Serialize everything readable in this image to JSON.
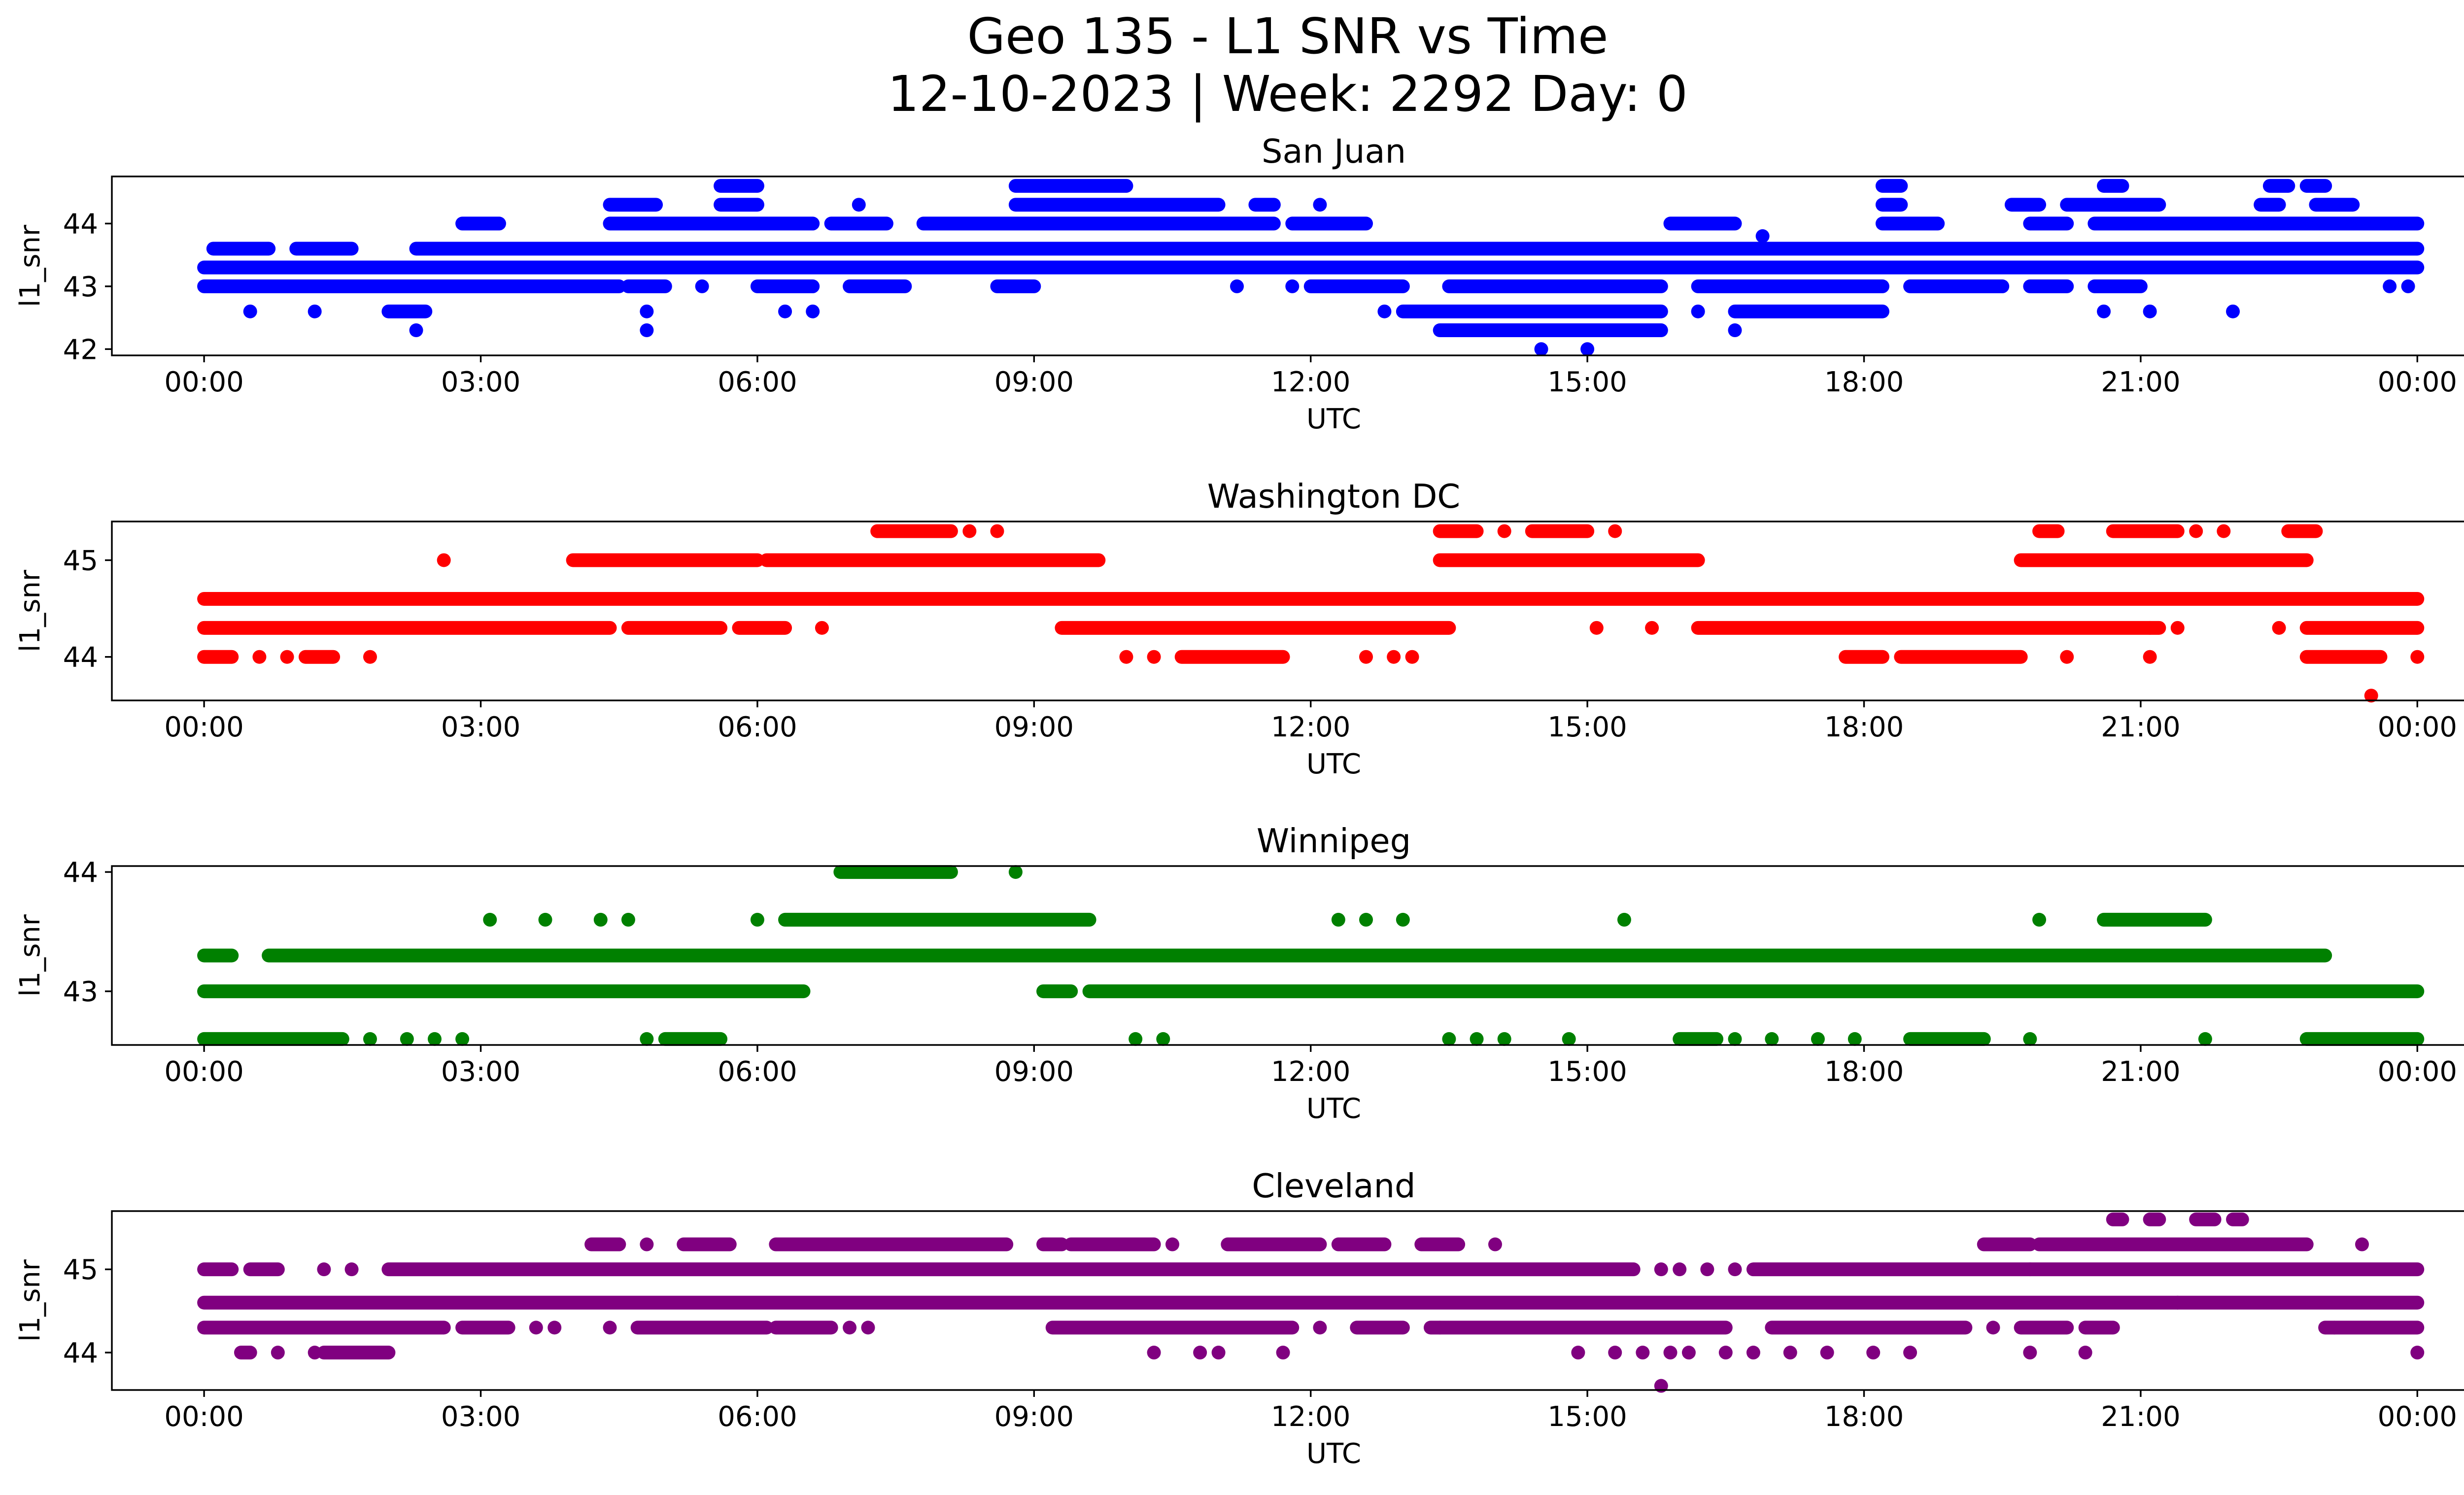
{
  "figure": {
    "title_line1": "Geo 135 - L1 SNR vs Time",
    "title_line2": "12-10-2023 | Week: 2292 Day: 0"
  },
  "chart_data": [
    {
      "type": "scatter",
      "title": "San Juan",
      "xlabel": "UTC",
      "ylabel": "l1_snr",
      "color": "#0000ff",
      "x_unit": "hours UTC",
      "xlim": [
        -1,
        25.5
      ],
      "ylim": [
        41.9,
        44.75
      ],
      "xticks": [
        "00:00",
        "03:00",
        "06:00",
        "09:00",
        "12:00",
        "15:00",
        "18:00",
        "21:00",
        "00:00"
      ],
      "yticks": [
        42,
        43,
        44
      ],
      "grid": false,
      "levels": [
        {
          "y": 43.3,
          "segments": [
            [
              0,
              24
            ]
          ]
        },
        {
          "y": 43.0,
          "segments": [
            [
              0,
              4.5
            ],
            [
              4.6,
              5.0
            ],
            [
              6.0,
              6.6
            ],
            [
              7.0,
              7.6
            ],
            [
              8.6,
              9.0
            ],
            [
              12.0,
              13.0
            ],
            [
              13.5,
              15.8
            ],
            [
              16.2,
              18.2
            ],
            [
              18.5,
              19.5
            ],
            [
              19.8,
              20.2
            ],
            [
              20.5,
              21.0
            ]
          ]
        },
        {
          "y": 43.6,
          "segments": [
            [
              0.1,
              0.7
            ],
            [
              1.0,
              1.6
            ],
            [
              2.3,
              24
            ]
          ]
        },
        {
          "y": 42.6,
          "segments": [
            [
              2.0,
              2.4
            ],
            [
              13.0,
              15.8
            ],
            [
              16.6,
              18.2
            ]
          ]
        },
        {
          "y": 44.0,
          "segments": [
            [
              2.8,
              3.2
            ],
            [
              4.4,
              6.6
            ],
            [
              6.8,
              7.4
            ],
            [
              7.8,
              8.8
            ],
            [
              8.8,
              11.6
            ],
            [
              11.8,
              12.6
            ],
            [
              15.9,
              16.6
            ],
            [
              18.2,
              18.8
            ],
            [
              19.8,
              20.2
            ],
            [
              20.5,
              24
            ]
          ]
        },
        {
          "y": 44.3,
          "segments": [
            [
              4.4,
              4.9
            ],
            [
              5.6,
              6.0
            ],
            [
              8.8,
              11.0
            ],
            [
              11.4,
              11.6
            ],
            [
              18.2,
              18.4
            ],
            [
              19.6,
              19.9
            ],
            [
              20.2,
              21.2
            ],
            [
              22.3,
              22.5
            ],
            [
              22.9,
              23.3
            ]
          ]
        },
        {
          "y": 44.6,
          "segments": [
            [
              5.6,
              6.0
            ],
            [
              8.8,
              10.0
            ],
            [
              18.2,
              18.4
            ],
            [
              20.6,
              20.8
            ],
            [
              22.4,
              22.6
            ],
            [
              22.8,
              23.0
            ]
          ]
        },
        {
          "y": 42.3,
          "segments": [
            [
              13.4,
              15.8
            ]
          ]
        }
      ],
      "points": [
        {
          "x": 0.5,
          "y": 42.6
        },
        {
          "x": 1.2,
          "y": 42.6
        },
        {
          "x": 2.3,
          "y": 42.3
        },
        {
          "x": 4.8,
          "y": 42.6
        },
        {
          "x": 4.8,
          "y": 42.3
        },
        {
          "x": 5.4,
          "y": 43.0
        },
        {
          "x": 6.3,
          "y": 42.6
        },
        {
          "x": 6.6,
          "y": 42.6
        },
        {
          "x": 12.8,
          "y": 42.6
        },
        {
          "x": 14.5,
          "y": 42.0
        },
        {
          "x": 15.0,
          "y": 42.0
        },
        {
          "x": 16.2,
          "y": 42.6
        },
        {
          "x": 16.6,
          "y": 42.3
        },
        {
          "x": 20.6,
          "y": 42.6
        },
        {
          "x": 22.0,
          "y": 42.6
        },
        {
          "x": 23.7,
          "y": 43.0
        },
        {
          "x": 23.9,
          "y": 43.0
        },
        {
          "x": 11.2,
          "y": 43.0
        },
        {
          "x": 11.8,
          "y": 43.0
        },
        {
          "x": 12.1,
          "y": 44.3
        },
        {
          "x": 7.1,
          "y": 44.3
        },
        {
          "x": 16.9,
          "y": 43.8
        },
        {
          "x": 17.5,
          "y": 43.6
        },
        {
          "x": 21.1,
          "y": 42.6
        }
      ]
    },
    {
      "type": "scatter",
      "title": "Washington DC",
      "xlabel": "UTC",
      "ylabel": "l1_snr",
      "color": "#ff0000",
      "x_unit": "hours UTC",
      "xlim": [
        -1,
        25.5
      ],
      "ylim": [
        43.55,
        45.4
      ],
      "xticks": [
        "00:00",
        "03:00",
        "06:00",
        "09:00",
        "12:00",
        "15:00",
        "18:00",
        "21:00",
        "00:00"
      ],
      "yticks": [
        44,
        45
      ],
      "grid": false,
      "levels": [
        {
          "y": 44.6,
          "segments": [
            [
              0,
              24
            ]
          ]
        },
        {
          "y": 44.3,
          "segments": [
            [
              0,
              4.4
            ],
            [
              4.6,
              5.6
            ],
            [
              5.8,
              6.3
            ],
            [
              9.3,
              13.5
            ],
            [
              16.2,
              21.2
            ],
            [
              22.8,
              24
            ]
          ]
        },
        {
          "y": 45.0,
          "segments": [
            [
              4.0,
              6.0
            ],
            [
              6.1,
              9.7
            ],
            [
              13.4,
              16.2
            ],
            [
              19.7,
              22.8
            ]
          ]
        },
        {
          "y": 44.0,
          "segments": [
            [
              0,
              0.3
            ],
            [
              1.1,
              1.4
            ],
            [
              10.6,
              11.7
            ],
            [
              17.8,
              18.2
            ],
            [
              18.4,
              19.7
            ],
            [
              22.8,
              23.6
            ]
          ]
        },
        {
          "y": 45.3,
          "segments": [
            [
              7.3,
              8.1
            ],
            [
              13.4,
              13.8
            ],
            [
              14.4,
              15.0
            ],
            [
              19.9,
              20.1
            ],
            [
              20.7,
              21.4
            ],
            [
              22.6,
              22.9
            ]
          ]
        }
      ],
      "points": [
        {
          "x": 2.6,
          "y": 45.0
        },
        {
          "x": 0.6,
          "y": 44.0
        },
        {
          "x": 0.9,
          "y": 44.0
        },
        {
          "x": 1.8,
          "y": 44.0
        },
        {
          "x": 6.7,
          "y": 44.3
        },
        {
          "x": 8.6,
          "y": 45.3
        },
        {
          "x": 8.3,
          "y": 45.3
        },
        {
          "x": 10.0,
          "y": 44.0
        },
        {
          "x": 10.3,
          "y": 44.0
        },
        {
          "x": 12.6,
          "y": 44.0
        },
        {
          "x": 12.9,
          "y": 44.0
        },
        {
          "x": 13.1,
          "y": 44.0
        },
        {
          "x": 15.1,
          "y": 44.3
        },
        {
          "x": 15.7,
          "y": 44.3
        },
        {
          "x": 15.3,
          "y": 45.3
        },
        {
          "x": 14.1,
          "y": 45.3
        },
        {
          "x": 18.6,
          "y": 44.6
        },
        {
          "x": 19.2,
          "y": 44.6
        },
        {
          "x": 20.2,
          "y": 44.0
        },
        {
          "x": 21.1,
          "y": 44.0
        },
        {
          "x": 21.1,
          "y": 44.3
        },
        {
          "x": 21.4,
          "y": 44.3
        },
        {
          "x": 21.6,
          "y": 45.3
        },
        {
          "x": 21.9,
          "y": 45.3
        },
        {
          "x": 22.5,
          "y": 44.3
        },
        {
          "x": 23.5,
          "y": 43.6
        },
        {
          "x": 24.0,
          "y": 44.0
        }
      ]
    },
    {
      "type": "scatter",
      "title": "Winnipeg",
      "xlabel": "UTC",
      "ylabel": "l1_snr",
      "color": "#008000",
      "x_unit": "hours UTC",
      "xlim": [
        -1,
        25.5
      ],
      "ylim": [
        42.55,
        44.05
      ],
      "xticks": [
        "00:00",
        "03:00",
        "06:00",
        "09:00",
        "12:00",
        "15:00",
        "18:00",
        "21:00",
        "00:00"
      ],
      "yticks": [
        43,
        44
      ],
      "grid": false,
      "levels": [
        {
          "y": 43.0,
          "segments": [
            [
              0,
              6.5
            ],
            [
              9.1,
              9.4
            ],
            [
              9.6,
              24
            ]
          ]
        },
        {
          "y": 43.3,
          "segments": [
            [
              0,
              0.3
            ],
            [
              0.7,
              23.0
            ]
          ]
        },
        {
          "y": 42.6,
          "segments": [
            [
              0,
              1.5
            ],
            [
              5.0,
              5.6
            ],
            [
              16.0,
              16.4
            ],
            [
              18.5,
              19.3
            ],
            [
              22.8,
              24
            ]
          ]
        },
        {
          "y": 43.6,
          "segments": [
            [
              6.3,
              9.6
            ],
            [
              20.6,
              21.7
            ]
          ]
        },
        {
          "y": 44.0,
          "segments": [
            [
              6.9,
              8.1
            ]
          ]
        }
      ],
      "points": [
        {
          "x": 1.8,
          "y": 42.6
        },
        {
          "x": 2.2,
          "y": 42.6
        },
        {
          "x": 2.5,
          "y": 42.6
        },
        {
          "x": 2.8,
          "y": 42.6
        },
        {
          "x": 3.1,
          "y": 43.6
        },
        {
          "x": 3.7,
          "y": 43.6
        },
        {
          "x": 4.3,
          "y": 43.6
        },
        {
          "x": 4.6,
          "y": 43.6
        },
        {
          "x": 4.8,
          "y": 42.6
        },
        {
          "x": 6.0,
          "y": 43.6
        },
        {
          "x": 8.8,
          "y": 44.0
        },
        {
          "x": 10.1,
          "y": 42.6
        },
        {
          "x": 10.4,
          "y": 42.6
        },
        {
          "x": 12.3,
          "y": 43.6
        },
        {
          "x": 12.6,
          "y": 43.6
        },
        {
          "x": 13.0,
          "y": 43.6
        },
        {
          "x": 13.5,
          "y": 42.6
        },
        {
          "x": 13.8,
          "y": 42.6
        },
        {
          "x": 14.1,
          "y": 42.6
        },
        {
          "x": 14.8,
          "y": 42.6
        },
        {
          "x": 15.4,
          "y": 43.6
        },
        {
          "x": 16.6,
          "y": 42.6
        },
        {
          "x": 17.0,
          "y": 42.6
        },
        {
          "x": 17.5,
          "y": 42.6
        },
        {
          "x": 17.9,
          "y": 42.6
        },
        {
          "x": 19.8,
          "y": 42.6
        },
        {
          "x": 19.9,
          "y": 43.6
        },
        {
          "x": 21.7,
          "y": 42.6
        }
      ]
    },
    {
      "type": "scatter",
      "title": "Cleveland",
      "xlabel": "UTC",
      "ylabel": "l1_snr",
      "color": "#800080",
      "x_unit": "hours UTC",
      "xlim": [
        -1,
        25.5
      ],
      "ylim": [
        43.55,
        45.7
      ],
      "xticks": [
        "00:00",
        "03:00",
        "06:00",
        "09:00",
        "12:00",
        "15:00",
        "18:00",
        "21:00",
        "00:00"
      ],
      "yticks": [
        44,
        45
      ],
      "grid": false,
      "levels": [
        {
          "y": 44.6,
          "segments": [
            [
              0,
              24
            ]
          ]
        },
        {
          "y": 44.3,
          "segments": [
            [
              0,
              2.6
            ],
            [
              2.8,
              3.3
            ],
            [
              4.7,
              6.1
            ],
            [
              6.2,
              6.8
            ],
            [
              9.2,
              11.8
            ],
            [
              12.5,
              13.0
            ],
            [
              13.3,
              16.5
            ],
            [
              17.0,
              19.1
            ],
            [
              19.7,
              20.2
            ],
            [
              20.4,
              20.7
            ],
            [
              23.0,
              24
            ]
          ]
        },
        {
          "y": 45.0,
          "segments": [
            [
              0,
              0.3
            ],
            [
              0.5,
              0.8
            ],
            [
              2.0,
              15.5
            ],
            [
              16.8,
              19.8
            ],
            [
              19.8,
              24
            ]
          ]
        },
        {
          "y": 44.0,
          "segments": [
            [
              0.4,
              0.5
            ],
            [
              1.3,
              2.0
            ]
          ]
        },
        {
          "y": 45.3,
          "segments": [
            [
              4.2,
              4.5
            ],
            [
              5.2,
              5.7
            ],
            [
              6.2,
              8.7
            ],
            [
              9.1,
              9.3
            ],
            [
              9.4,
              10.3
            ],
            [
              11.1,
              12.1
            ],
            [
              12.3,
              12.8
            ],
            [
              13.2,
              13.6
            ],
            [
              19.3,
              19.8
            ],
            [
              19.9,
              22.8
            ]
          ]
        },
        {
          "y": 45.6,
          "segments": [
            [
              20.7,
              20.8
            ],
            [
              21.1,
              21.2
            ],
            [
              21.6,
              21.8
            ],
            [
              22.0,
              22.1
            ]
          ]
        }
      ],
      "points": [
        {
          "x": 0.8,
          "y": 44.0
        },
        {
          "x": 1.2,
          "y": 44.0
        },
        {
          "x": 1.3,
          "y": 45.0
        },
        {
          "x": 1.6,
          "y": 45.0
        },
        {
          "x": 3.6,
          "y": 44.3
        },
        {
          "x": 3.8,
          "y": 44.3
        },
        {
          "x": 4.4,
          "y": 44.3
        },
        {
          "x": 4.8,
          "y": 45.3
        },
        {
          "x": 4.5,
          "y": 45.3
        },
        {
          "x": 7.0,
          "y": 44.3
        },
        {
          "x": 7.2,
          "y": 44.3
        },
        {
          "x": 9.6,
          "y": 45.3
        },
        {
          "x": 10.5,
          "y": 45.3
        },
        {
          "x": 10.3,
          "y": 44.0
        },
        {
          "x": 10.8,
          "y": 44.0
        },
        {
          "x": 11.0,
          "y": 44.0
        },
        {
          "x": 11.7,
          "y": 44.0
        },
        {
          "x": 12.1,
          "y": 44.3
        },
        {
          "x": 13.4,
          "y": 44.3
        },
        {
          "x": 14.0,
          "y": 45.3
        },
        {
          "x": 14.9,
          "y": 44.0
        },
        {
          "x": 15.3,
          "y": 44.0
        },
        {
          "x": 15.6,
          "y": 44.0
        },
        {
          "x": 15.9,
          "y": 44.0
        },
        {
          "x": 16.1,
          "y": 44.0
        },
        {
          "x": 15.8,
          "y": 45.0
        },
        {
          "x": 16.0,
          "y": 45.0
        },
        {
          "x": 16.3,
          "y": 45.0
        },
        {
          "x": 16.6,
          "y": 45.0
        },
        {
          "x": 15.8,
          "y": 43.6
        },
        {
          "x": 16.5,
          "y": 44.0
        },
        {
          "x": 16.8,
          "y": 44.0
        },
        {
          "x": 17.2,
          "y": 44.0
        },
        {
          "x": 17.6,
          "y": 44.0
        },
        {
          "x": 18.1,
          "y": 44.0
        },
        {
          "x": 18.5,
          "y": 44.0
        },
        {
          "x": 19.4,
          "y": 44.3
        },
        {
          "x": 19.8,
          "y": 44.0
        },
        {
          "x": 20.4,
          "y": 44.0
        },
        {
          "x": 21.4,
          "y": 44.6
        },
        {
          "x": 23.1,
          "y": 44.3
        },
        {
          "x": 23.4,
          "y": 45.3
        },
        {
          "x": 24.0,
          "y": 44.0
        }
      ]
    }
  ]
}
